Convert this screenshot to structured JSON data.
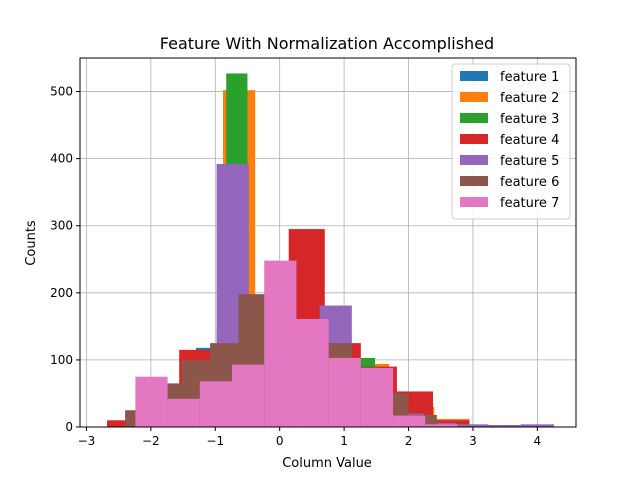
{
  "chart_data": {
    "type": "histogram",
    "title": "Feature With Normalization Accomplished",
    "xlabel": "Column Value",
    "ylabel": "Counts",
    "xlim": [
      -3.1,
      4.6
    ],
    "ylim": [
      0,
      550
    ],
    "xticks": [
      -3,
      -2,
      -1,
      0,
      1,
      2,
      3,
      4
    ],
    "yticks": [
      0,
      100,
      200,
      300,
      400,
      500
    ],
    "grid": true,
    "legend_position": "top-right",
    "series": [
      {
        "name": "feature 1",
        "color": "#1f77b4",
        "bins": [
          {
            "x0": -2.68,
            "x1": -2.22,
            "count": 8
          },
          {
            "x0": -2.22,
            "x1": -1.76,
            "count": 22
          },
          {
            "x0": -1.76,
            "x1": -1.3,
            "count": 48
          },
          {
            "x0": -1.3,
            "x1": -0.84,
            "count": 118
          },
          {
            "x0": -0.84,
            "x1": -0.38,
            "count": 150
          },
          {
            "x0": -0.38,
            "x1": 0.08,
            "count": 160
          },
          {
            "x0": 0.08,
            "x1": 0.54,
            "count": 140
          },
          {
            "x0": 0.54,
            "x1": 1.0,
            "count": 110
          },
          {
            "x0": 1.0,
            "x1": 1.46,
            "count": 85
          },
          {
            "x0": 1.46,
            "x1": 1.92,
            "count": 40
          },
          {
            "x0": 1.92,
            "x1": 2.38,
            "count": 15
          },
          {
            "x0": 2.38,
            "x1": 2.84,
            "count": 5
          }
        ]
      },
      {
        "name": "feature 2",
        "color": "#ff7f0e",
        "bins": [
          {
            "x0": -0.88,
            "x1": -0.38,
            "count": 502
          },
          {
            "x0": -0.38,
            "x1": 0.12,
            "count": 150
          },
          {
            "x0": 0.12,
            "x1": 0.62,
            "count": 120
          },
          {
            "x0": 0.62,
            "x1": 1.12,
            "count": 102
          },
          {
            "x0": 1.12,
            "x1": 1.7,
            "count": 94
          },
          {
            "x0": 1.7,
            "x1": 2.4,
            "count": 30
          },
          {
            "x0": 2.4,
            "x1": 2.95,
            "count": 12
          },
          {
            "x0": 2.95,
            "x1": 3.4,
            "count": 3
          }
        ]
      },
      {
        "name": "feature 3",
        "color": "#2ca02c",
        "bins": [
          {
            "x0": -0.83,
            "x1": -0.5,
            "count": 527
          },
          {
            "x0": -0.5,
            "x1": -0.17,
            "count": 180
          },
          {
            "x0": -0.17,
            "x1": 0.16,
            "count": 100
          },
          {
            "x0": 0.16,
            "x1": 0.49,
            "count": 80
          },
          {
            "x0": 0.49,
            "x1": 0.82,
            "count": 70
          },
          {
            "x0": 0.82,
            "x1": 1.15,
            "count": 80
          },
          {
            "x0": 1.15,
            "x1": 1.48,
            "count": 103
          },
          {
            "x0": 1.48,
            "x1": 1.81,
            "count": 40
          }
        ]
      },
      {
        "name": "feature 4",
        "color": "#d62728",
        "bins": [
          {
            "x0": -2.68,
            "x1": -2.12,
            "count": 10
          },
          {
            "x0": -2.12,
            "x1": -1.56,
            "count": 40
          },
          {
            "x0": -1.56,
            "x1": -0.98,
            "count": 115
          },
          {
            "x0": -0.98,
            "x1": -0.42,
            "count": 145
          },
          {
            "x0": -0.42,
            "x1": 0.14,
            "count": 170
          },
          {
            "x0": 0.14,
            "x1": 0.7,
            "count": 295
          },
          {
            "x0": 0.7,
            "x1": 1.26,
            "count": 125
          },
          {
            "x0": 1.26,
            "x1": 1.82,
            "count": 90
          },
          {
            "x0": 1.82,
            "x1": 2.38,
            "count": 53
          },
          {
            "x0": 2.38,
            "x1": 2.94,
            "count": 10
          }
        ]
      },
      {
        "name": "feature 5",
        "color": "#9467bd",
        "bins": [
          {
            "x0": -0.98,
            "x1": -0.48,
            "count": 392
          },
          {
            "x0": -0.48,
            "x1": 0.02,
            "count": 190
          },
          {
            "x0": 0.02,
            "x1": 0.62,
            "count": 150
          },
          {
            "x0": 0.62,
            "x1": 1.12,
            "count": 181
          },
          {
            "x0": 1.12,
            "x1": 1.72,
            "count": 60
          },
          {
            "x0": 1.72,
            "x1": 2.24,
            "count": 20
          },
          {
            "x0": 2.24,
            "x1": 2.74,
            "count": 6
          },
          {
            "x0": 2.74,
            "x1": 3.24,
            "count": 4
          },
          {
            "x0": 3.24,
            "x1": 3.74,
            "count": 3
          },
          {
            "x0": 3.74,
            "x1": 4.26,
            "count": 4
          }
        ]
      },
      {
        "name": "feature 6",
        "color": "#8c564b",
        "bins": [
          {
            "x0": -2.4,
            "x1": -1.96,
            "count": 25
          },
          {
            "x0": -1.96,
            "x1": -1.52,
            "count": 65
          },
          {
            "x0": -1.52,
            "x1": -1.08,
            "count": 100
          },
          {
            "x0": -1.08,
            "x1": -0.64,
            "count": 125
          },
          {
            "x0": -0.64,
            "x1": -0.2,
            "count": 198
          },
          {
            "x0": -0.2,
            "x1": 0.24,
            "count": 160
          },
          {
            "x0": 0.24,
            "x1": 0.68,
            "count": 155
          },
          {
            "x0": 0.68,
            "x1": 1.12,
            "count": 125
          },
          {
            "x0": 1.12,
            "x1": 1.56,
            "count": 90
          },
          {
            "x0": 1.56,
            "x1": 2.0,
            "count": 50
          },
          {
            "x0": 2.0,
            "x1": 2.44,
            "count": 18
          }
        ]
      },
      {
        "name": "feature 7",
        "color": "#e377c2",
        "bins": [
          {
            "x0": -2.24,
            "x1": -1.74,
            "count": 75
          },
          {
            "x0": -1.74,
            "x1": -1.24,
            "count": 42
          },
          {
            "x0": -1.24,
            "x1": -0.74,
            "count": 68
          },
          {
            "x0": -0.74,
            "x1": -0.24,
            "count": 93
          },
          {
            "x0": -0.24,
            "x1": 0.26,
            "count": 248
          },
          {
            "x0": 0.26,
            "x1": 0.76,
            "count": 161
          },
          {
            "x0": 0.76,
            "x1": 1.26,
            "count": 103
          },
          {
            "x0": 1.26,
            "x1": 1.76,
            "count": 88
          },
          {
            "x0": 1.76,
            "x1": 2.26,
            "count": 17
          },
          {
            "x0": 2.26,
            "x1": 2.76,
            "count": 4
          }
        ]
      }
    ]
  }
}
